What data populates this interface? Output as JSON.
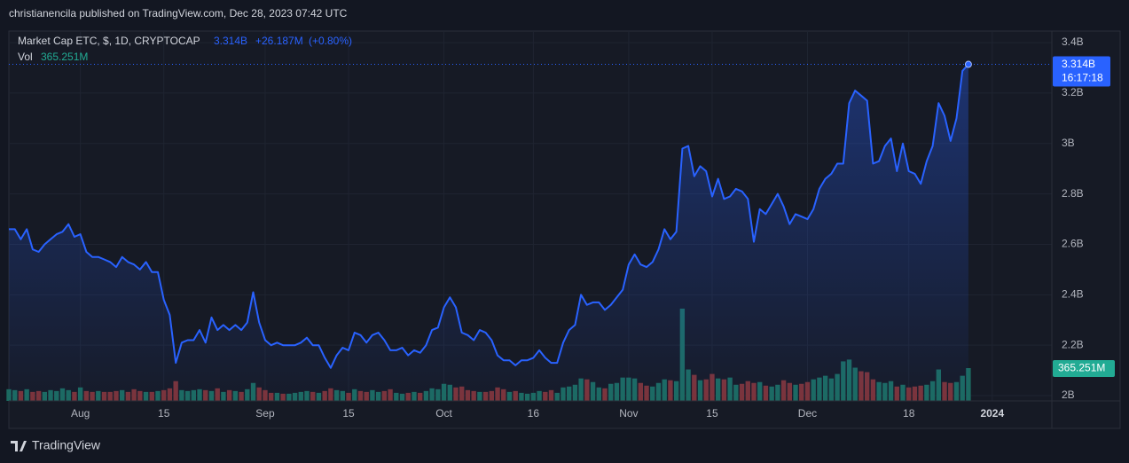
{
  "header": "christianencila published on TradingView.com, Dec 28, 2023 07:42 UTC",
  "footer": "TradingView",
  "chart_data": {
    "type": "line",
    "x": [
      "2023-07-20",
      "2023-07-21",
      "2023-07-22",
      "2023-07-23",
      "2023-07-24",
      "2023-07-25",
      "2023-07-26",
      "2023-07-27",
      "2023-07-28",
      "2023-07-29",
      "2023-07-30",
      "2023-07-31",
      "2023-08-01",
      "2023-08-02",
      "2023-08-03",
      "2023-08-04",
      "2023-08-05",
      "2023-08-06",
      "2023-08-07",
      "2023-08-08",
      "2023-08-09",
      "2023-08-10",
      "2023-08-11",
      "2023-08-12",
      "2023-08-13",
      "2023-08-14",
      "2023-08-15",
      "2023-08-16",
      "2023-08-17",
      "2023-08-18",
      "2023-08-19",
      "2023-08-20",
      "2023-08-21",
      "2023-08-22",
      "2023-08-23",
      "2023-08-24",
      "2023-08-25",
      "2023-08-26",
      "2023-08-27",
      "2023-08-28",
      "2023-08-29",
      "2023-08-30",
      "2023-08-31",
      "2023-09-01",
      "2023-09-02",
      "2023-09-03",
      "2023-09-04",
      "2023-09-05",
      "2023-09-06",
      "2023-09-07",
      "2023-09-08",
      "2023-09-09",
      "2023-09-10",
      "2023-09-11",
      "2023-09-12",
      "2023-09-13",
      "2023-09-14",
      "2023-09-15",
      "2023-09-16",
      "2023-09-17",
      "2023-09-18",
      "2023-09-19",
      "2023-09-20",
      "2023-09-21",
      "2023-09-22",
      "2023-09-23",
      "2023-09-24",
      "2023-09-25",
      "2023-09-26",
      "2023-09-27",
      "2023-09-28",
      "2023-09-29",
      "2023-09-30",
      "2023-10-01",
      "2023-10-02",
      "2023-10-03",
      "2023-10-04",
      "2023-10-05",
      "2023-10-06",
      "2023-10-07",
      "2023-10-08",
      "2023-10-09",
      "2023-10-10",
      "2023-10-11",
      "2023-10-12",
      "2023-10-13",
      "2023-10-14",
      "2023-10-15",
      "2023-10-16",
      "2023-10-17",
      "2023-10-18",
      "2023-10-19",
      "2023-10-20",
      "2023-10-21",
      "2023-10-22",
      "2023-10-23",
      "2023-10-24",
      "2023-10-25",
      "2023-10-26",
      "2023-10-27",
      "2023-10-28",
      "2023-10-29",
      "2023-10-30",
      "2023-10-31",
      "2023-11-01",
      "2023-11-02",
      "2023-11-03",
      "2023-11-04",
      "2023-11-05",
      "2023-11-06",
      "2023-11-07",
      "2023-11-08",
      "2023-11-09",
      "2023-11-10",
      "2023-11-11",
      "2023-11-12",
      "2023-11-13",
      "2023-11-14",
      "2023-11-15",
      "2023-11-16",
      "2023-11-17",
      "2023-11-18",
      "2023-11-19",
      "2023-11-20",
      "2023-11-21",
      "2023-11-22",
      "2023-11-23",
      "2023-11-24",
      "2023-11-25",
      "2023-11-26",
      "2023-11-27",
      "2023-11-28",
      "2023-11-29",
      "2023-11-30",
      "2023-12-01",
      "2023-12-02",
      "2023-12-03",
      "2023-12-04",
      "2023-12-05",
      "2023-12-06",
      "2023-12-07",
      "2023-12-08",
      "2023-12-09",
      "2023-12-10",
      "2023-12-11",
      "2023-12-12",
      "2023-12-13",
      "2023-12-14",
      "2023-12-15",
      "2023-12-16",
      "2023-12-17",
      "2023-12-18",
      "2023-12-19",
      "2023-12-20",
      "2023-12-21",
      "2023-12-22",
      "2023-12-23",
      "2023-12-24",
      "2023-12-25",
      "2023-12-26",
      "2023-12-27",
      "2023-12-28"
    ],
    "series": [
      {
        "name": "Market Cap ETC, $, 1D, CRYPTOCAP",
        "color": "#2962ff",
        "value_label": "3.314B",
        "change": "+26.187M",
        "change_pct": "(+0.80%)",
        "countdown": "16:17:18",
        "values": [
          2.66,
          2.66,
          2.62,
          2.66,
          2.58,
          2.57,
          2.6,
          2.62,
          2.64,
          2.65,
          2.68,
          2.63,
          2.64,
          2.57,
          2.55,
          2.55,
          2.54,
          2.53,
          2.51,
          2.55,
          2.53,
          2.52,
          2.5,
          2.53,
          2.49,
          2.49,
          2.38,
          2.32,
          2.13,
          2.21,
          2.22,
          2.22,
          2.26,
          2.21,
          2.31,
          2.26,
          2.28,
          2.26,
          2.28,
          2.26,
          2.29,
          2.41,
          2.29,
          2.22,
          2.2,
          2.21,
          2.2,
          2.2,
          2.2,
          2.21,
          2.23,
          2.2,
          2.2,
          2.15,
          2.11,
          2.16,
          2.19,
          2.18,
          2.25,
          2.24,
          2.21,
          2.24,
          2.25,
          2.22,
          2.18,
          2.18,
          2.19,
          2.16,
          2.18,
          2.17,
          2.2,
          2.26,
          2.27,
          2.35,
          2.39,
          2.35,
          2.25,
          2.24,
          2.22,
          2.26,
          2.25,
          2.22,
          2.16,
          2.14,
          2.14,
          2.12,
          2.14,
          2.14,
          2.15,
          2.18,
          2.15,
          2.13,
          2.13,
          2.21,
          2.26,
          2.28,
          2.4,
          2.36,
          2.37,
          2.37,
          2.34,
          2.36,
          2.39,
          2.42,
          2.52,
          2.56,
          2.52,
          2.51,
          2.53,
          2.58,
          2.66,
          2.62,
          2.65,
          2.98,
          2.99,
          2.87,
          2.91,
          2.89,
          2.79,
          2.86,
          2.78,
          2.79,
          2.82,
          2.81,
          2.78,
          2.61,
          2.74,
          2.72,
          2.76,
          2.8,
          2.75,
          2.68,
          2.72,
          2.71,
          2.7,
          2.74,
          2.82,
          2.86,
          2.88,
          2.92,
          2.92,
          3.16,
          3.21,
          3.19,
          3.17,
          2.92,
          2.93,
          2.99,
          3.02,
          2.89,
          3.0,
          2.89,
          2.88,
          2.84,
          2.93,
          2.99,
          3.16,
          3.11,
          3.01,
          3.1,
          3.288,
          3.314
        ]
      },
      {
        "name": "Vol",
        "axis": "y2",
        "value_label": "365.251M",
        "colors": {
          "up": "#1c6a60",
          "down": "#7c3338"
        },
        "color": "#22ab94",
        "values": [
          130,
          120,
          110,
          130,
          100,
          110,
          100,
          120,
          110,
          140,
          120,
          100,
          150,
          110,
          100,
          110,
          100,
          100,
          110,
          120,
          100,
          130,
          110,
          100,
          100,
          110,
          120,
          140,
          220,
          120,
          110,
          120,
          130,
          120,
          110,
          140,
          100,
          120,
          110,
          100,
          130,
          200,
          150,
          120,
          90,
          90,
          80,
          80,
          90,
          100,
          110,
          100,
          90,
          110,
          140,
          120,
          110,
          90,
          130,
          110,
          100,
          120,
          100,
          110,
          130,
          90,
          80,
          90,
          100,
          90,
          110,
          140,
          130,
          190,
          180,
          150,
          160,
          120,
          110,
          100,
          100,
          110,
          150,
          130,
          100,
          110,
          90,
          80,
          90,
          110,
          100,
          120,
          90,
          150,
          160,
          180,
          250,
          240,
          210,
          150,
          140,
          190,
          200,
          260,
          260,
          250,
          200,
          170,
          160,
          200,
          240,
          230,
          220,
          1027,
          350,
          290,
          230,
          240,
          300,
          250,
          240,
          260,
          180,
          190,
          220,
          200,
          210,
          170,
          160,
          180,
          230,
          200,
          180,
          190,
          210,
          240,
          260,
          280,
          250,
          300,
          440,
          460,
          370,
          330,
          320,
          240,
          210,
          200,
          220,
          160,
          180,
          150,
          160,
          170,
          180,
          220,
          350,
          210,
          200,
          210,
          280,
          365.251
        ]
      }
    ],
    "xlim": [
      "2023-07-20",
      "2024-01-11"
    ],
    "xticks": [
      {
        "value": "2023-08-01",
        "label": "Aug"
      },
      {
        "value": "2023-08-15",
        "label": "15"
      },
      {
        "value": "2023-09-01",
        "label": "Sep"
      },
      {
        "value": "2023-09-15",
        "label": "15"
      },
      {
        "value": "2023-10-01",
        "label": "Oct"
      },
      {
        "value": "2023-10-16",
        "label": "16"
      },
      {
        "value": "2023-11-01",
        "label": "Nov"
      },
      {
        "value": "2023-11-15",
        "label": "15"
      },
      {
        "value": "2023-12-01",
        "label": "Dec"
      },
      {
        "value": "2023-12-18",
        "label": "18"
      },
      {
        "value": "2024-01-01",
        "label": "2024"
      }
    ],
    "ylim": [
      1.979,
      3.446
    ],
    "yticks": [
      {
        "value": 2,
        "label": "2B"
      },
      {
        "value": 2.2,
        "label": "2.2B"
      },
      {
        "value": 2.4,
        "label": "2.4B"
      },
      {
        "value": 2.6,
        "label": "2.6B"
      },
      {
        "value": 2.8,
        "label": "2.8B"
      },
      {
        "value": 3,
        "label": "3B"
      },
      {
        "value": 3.2,
        "label": "3.2B"
      },
      {
        "value": 3.4,
        "label": "3.4B"
      }
    ],
    "y2lim": [
      0,
      4116
    ],
    "grid": true
  }
}
